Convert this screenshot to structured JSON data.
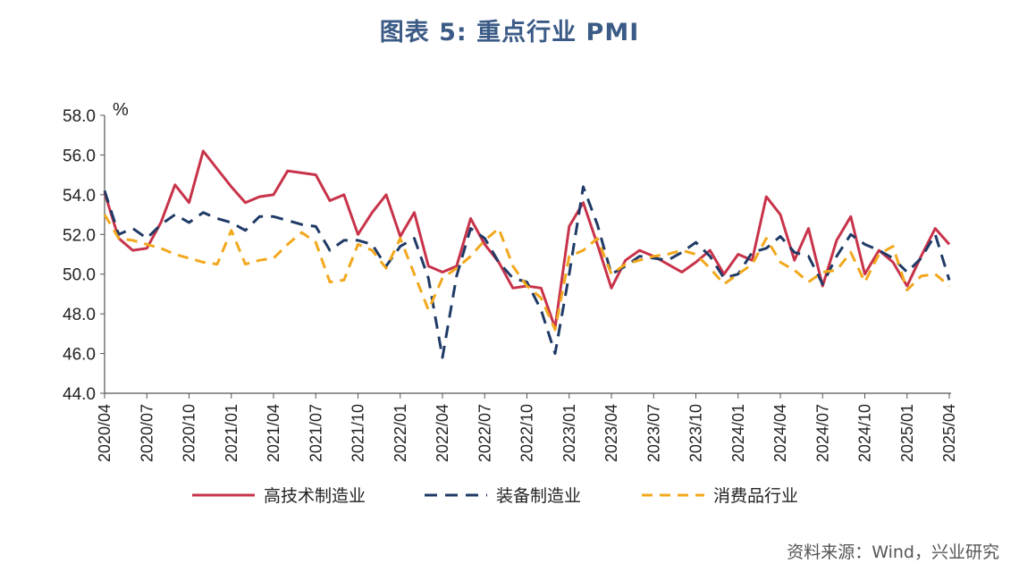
{
  "chart_data": {
    "type": "line",
    "title": "图表 5:    重点行业 PMI",
    "ylabel": "%",
    "ylim": [
      44.0,
      58.0
    ],
    "yticks": [
      "44.0",
      "46.0",
      "48.0",
      "50.0",
      "52.0",
      "54.0",
      "56.0",
      "58.0"
    ],
    "xtick_labels": [
      "2020/04",
      "2020/07",
      "2020/10",
      "2021/01",
      "2021/04",
      "2021/07",
      "2021/10",
      "2022/01",
      "2022/04",
      "2022/07",
      "2022/10",
      "2023/01",
      "2023/04",
      "2023/07",
      "2023/10",
      "2024/01",
      "2024/04",
      "2024/07",
      "2024/10",
      "2025/01",
      "2025/04"
    ],
    "x": [
      "2020/04",
      "2020/05",
      "2020/06",
      "2020/07",
      "2020/08",
      "2020/09",
      "2020/10",
      "2020/11",
      "2020/12",
      "2021/01",
      "2021/02",
      "2021/03",
      "2021/04",
      "2021/05",
      "2021/06",
      "2021/07",
      "2021/08",
      "2021/09",
      "2021/10",
      "2021/11",
      "2021/12",
      "2022/01",
      "2022/02",
      "2022/03",
      "2022/04",
      "2022/05",
      "2022/06",
      "2022/07",
      "2022/08",
      "2022/09",
      "2022/10",
      "2022/11",
      "2022/12",
      "2023/01",
      "2023/02",
      "2023/03",
      "2023/04",
      "2023/05",
      "2023/06",
      "2023/07",
      "2023/08",
      "2023/09",
      "2023/10",
      "2023/11",
      "2023/12",
      "2024/01",
      "2024/02",
      "2024/03",
      "2024/04",
      "2024/05",
      "2024/06",
      "2024/07",
      "2024/08",
      "2024/09",
      "2024/10",
      "2024/11",
      "2024/12",
      "2025/01",
      "2025/02",
      "2025/03",
      "2025/04"
    ],
    "series": [
      {
        "name": "高技术制造业",
        "color": "#c8334a",
        "dash": "solid",
        "values": [
          54.1,
          51.8,
          51.2,
          51.3,
          52.6,
          54.5,
          53.6,
          56.2,
          55.3,
          54.4,
          53.6,
          53.9,
          54.0,
          55.2,
          55.1,
          55.0,
          53.7,
          54.0,
          52.0,
          53.1,
          54.0,
          51.9,
          53.1,
          50.4,
          50.1,
          50.4,
          52.8,
          51.5,
          50.6,
          49.3,
          49.4,
          49.3,
          47.3,
          52.4,
          53.6,
          51.5,
          49.3,
          50.7,
          51.2,
          50.9,
          50.5,
          50.1,
          50.6,
          51.2,
          50.0,
          51.0,
          50.7,
          53.9,
          53.0,
          50.7,
          52.3,
          49.4,
          51.7,
          52.9,
          50.0,
          51.2,
          50.6,
          49.4,
          50.9,
          52.3,
          51.5
        ]
      },
      {
        "name": "装备制造业",
        "color": "#1f3a66",
        "dash": "14 9",
        "values": [
          54.2,
          52.0,
          52.3,
          51.8,
          52.5,
          53.0,
          52.6,
          53.1,
          52.8,
          52.6,
          52.2,
          52.9,
          52.9,
          52.7,
          52.5,
          52.4,
          51.2,
          51.7,
          51.7,
          51.5,
          50.4,
          51.4,
          51.8,
          49.8,
          45.8,
          49.9,
          52.3,
          51.8,
          50.6,
          49.8,
          49.6,
          48.2,
          46.0,
          50.0,
          54.4,
          52.5,
          50.0,
          50.4,
          50.9,
          50.8,
          50.7,
          51.1,
          51.6,
          50.9,
          49.8,
          50.0,
          51.1,
          51.3,
          51.9,
          51.1,
          50.9,
          49.5,
          50.9,
          52.0,
          51.5,
          51.2,
          50.8,
          50.1,
          50.8,
          52.0,
          49.7
        ]
      },
      {
        "name": "消费品行业",
        "color": "#f2a81d",
        "dash": "12 8",
        "values": [
          53.0,
          51.8,
          51.7,
          51.5,
          51.3,
          51.0,
          50.8,
          50.6,
          50.5,
          52.2,
          50.5,
          50.7,
          50.8,
          51.5,
          52.1,
          51.6,
          49.6,
          49.7,
          51.5,
          51.2,
          50.3,
          51.8,
          50.0,
          48.2,
          49.8,
          50.3,
          50.9,
          51.7,
          52.3,
          50.4,
          49.4,
          48.8,
          47.2,
          50.9,
          51.2,
          51.8,
          50.0,
          50.5,
          50.7,
          50.9,
          51.0,
          51.2,
          51.0,
          50.3,
          49.5,
          50.0,
          50.5,
          51.8,
          50.6,
          50.2,
          49.6,
          50.1,
          50.2,
          51.1,
          49.6,
          51.0,
          51.4,
          49.2,
          49.9,
          50.0,
          49.4
        ]
      }
    ],
    "grid": false,
    "legend": "bottom"
  },
  "source_text": "资料来源：Wind，兴业研究"
}
